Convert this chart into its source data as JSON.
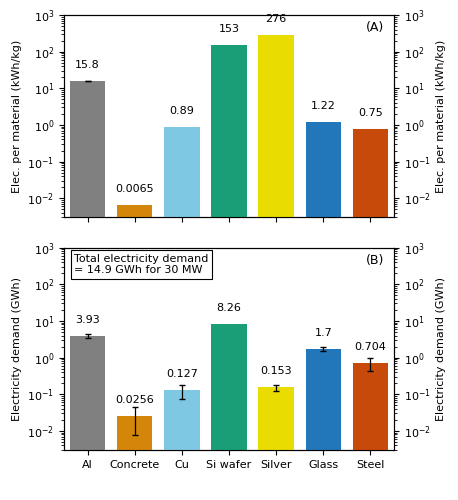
{
  "categories": [
    "Al",
    "Concrete",
    "Cu",
    "Si wafer",
    "Silver",
    "Glass",
    "Steel"
  ],
  "colors": [
    "#808080",
    "#D4860A",
    "#7EC8E3",
    "#1A9E78",
    "#E8DC00",
    "#2277BB",
    "#C84A0A"
  ],
  "panel_A": {
    "values": [
      15.8,
      0.0065,
      0.89,
      153,
      276,
      1.22,
      0.75
    ],
    "labels": [
      "15.8",
      "0.0065",
      "0.89",
      "153",
      "276",
      "1.22",
      "0.75"
    ],
    "yerr_A": [
      0.4,
      0,
      0,
      0,
      0,
      0,
      0
    ],
    "ylabel_left": "Elec. per material (kWh/kg)",
    "ylabel_right": "Elec. per material (kWh/kg)",
    "panel_label": "(A)",
    "ylim": [
      0.003,
      1000
    ]
  },
  "panel_B": {
    "values": [
      3.93,
      0.0256,
      0.127,
      8.26,
      0.153,
      1.7,
      0.704
    ],
    "labels": [
      "3.93",
      "0.0256",
      "0.127",
      "8.26",
      "0.153",
      "1.7",
      "0.704"
    ],
    "yerr_abs": [
      0.55,
      0.018,
      0.055,
      0,
      0.03,
      0.2,
      0.28
    ],
    "ylabel_left": "Electricity demand (GWh)",
    "ylabel_right": "Electricity demand (GWh)",
    "panel_label": "(B)",
    "ylim": [
      0.003,
      1000
    ],
    "annotation": "Total electricity demand\n= 14.9 GWh for 30 MW"
  },
  "bar_width": 0.75,
  "label_fontsize": 8,
  "tick_fontsize": 8,
  "annotation_fontsize": 8
}
